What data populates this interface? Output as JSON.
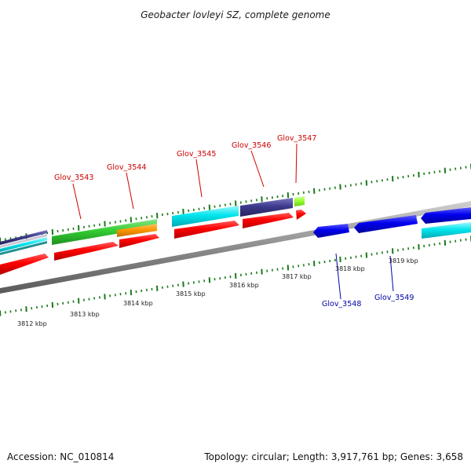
{
  "title": "Geobacter lovleyi SZ, complete genome",
  "footer": {
    "accession": "Accession: NC_010814",
    "summary": "Topology: circular; Length: 3,917,761 bp; Genes: 3,658"
  },
  "scale": {
    "unit": "kbp",
    "ticks": [
      {
        "kbp": 3812,
        "label": "3812 kbp"
      },
      {
        "kbp": 3813,
        "label": "3813 kbp"
      },
      {
        "kbp": 3814,
        "label": "3814 kbp"
      },
      {
        "kbp": 3815,
        "label": "3815 kbp"
      },
      {
        "kbp": 3816,
        "label": "3816 kbp"
      },
      {
        "kbp": 3817,
        "label": "3817 kbp"
      },
      {
        "kbp": 3818,
        "label": "3818 kbp"
      },
      {
        "kbp": 3819,
        "label": "3819 kbp"
      }
    ]
  },
  "gene_labels": [
    {
      "name": "Glov_3543",
      "strand": "forward"
    },
    {
      "name": "Glov_3544",
      "strand": "forward"
    },
    {
      "name": "Glov_3545",
      "strand": "forward"
    },
    {
      "name": "Glov_3546",
      "strand": "forward"
    },
    {
      "name": "Glov_3547",
      "strand": "forward"
    },
    {
      "name": "Glov_3548",
      "strand": "reverse"
    },
    {
      "name": "Glov_3549",
      "strand": "reverse"
    }
  ],
  "colors": {
    "forward_label": "#cc0000",
    "reverse_label": "#0000aa",
    "backbone": "#8c8c8c",
    "tick": "#1a7a1a",
    "cds": "#ff0000",
    "reverse_cds": "#0000ee",
    "cyan_track": "#00e5ee",
    "green_track": "#33cc33",
    "orange_track": "#ff9900",
    "purple_track": "#3d3a8c",
    "lime_track": "#99ff33"
  }
}
